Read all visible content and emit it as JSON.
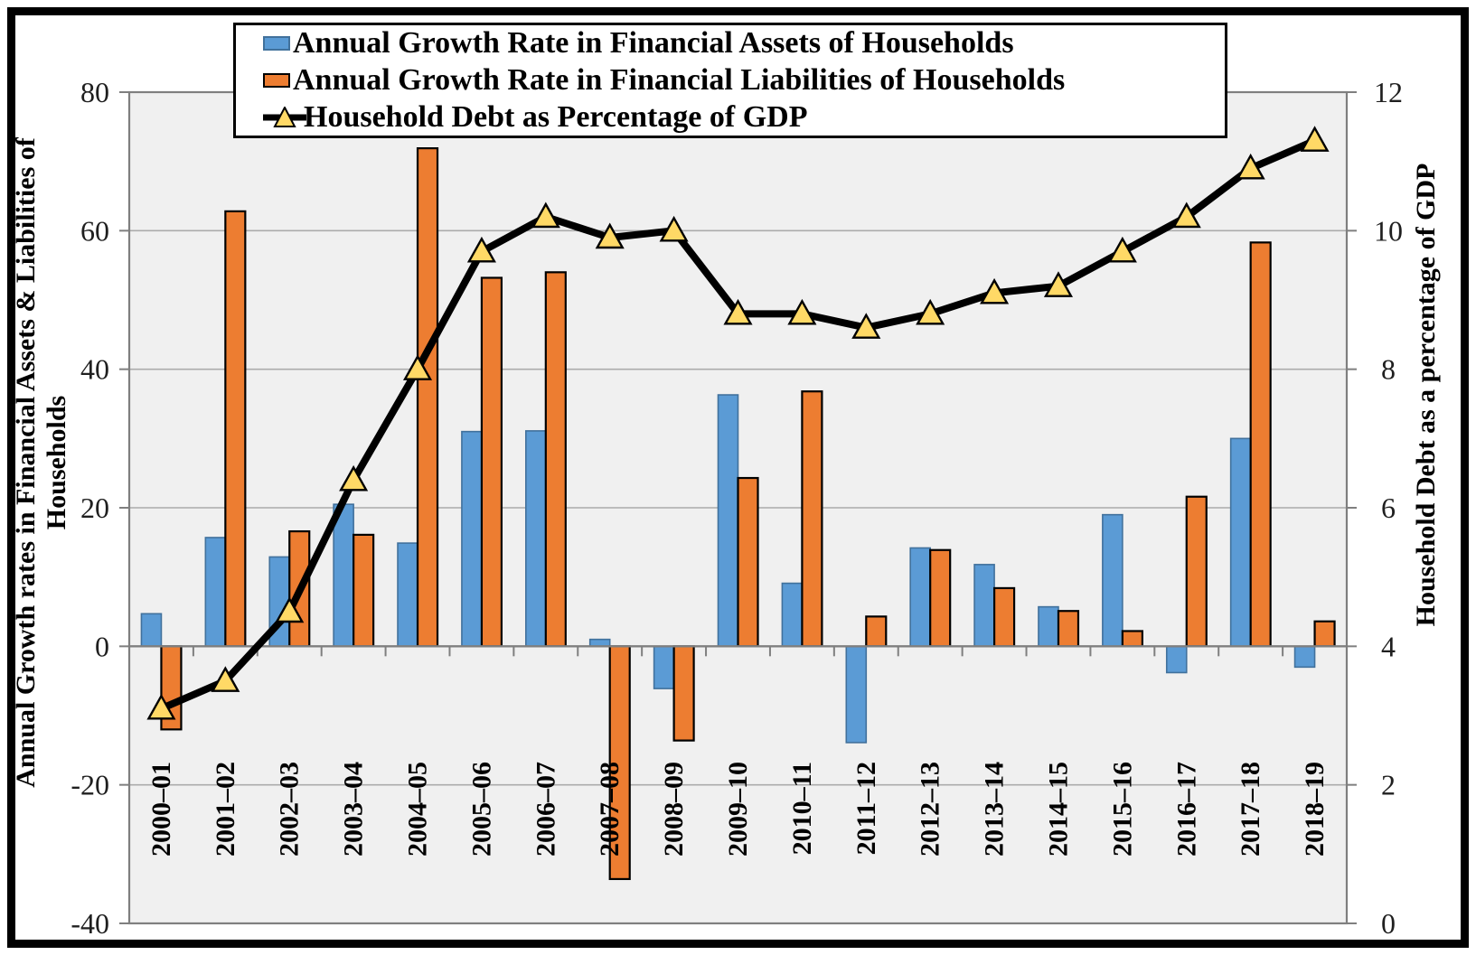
{
  "figure": {
    "background": "#FFFFFF",
    "border_color": "#000000"
  },
  "chart_data": {
    "type": "combo-bar-line",
    "legend_position": "top",
    "grid": true,
    "plot_bg": "#F0F0F0",
    "gridline_color": "#ABABAB",
    "axis_color": "#7F7F7F",
    "tick_label_color": "#1F1F1F",
    "categories": [
      "2000–01",
      "2001–02",
      "2002–03",
      "2003–04",
      "2004–05",
      "2005–06",
      "2006–07",
      "2007–08",
      "2008–09",
      "2009–10",
      "2010–11",
      "2011–12",
      "2012–13",
      "2013–14",
      "2014–15",
      "2015–16",
      "2016–17",
      "2017–18",
      "2018–19"
    ],
    "series": [
      {
        "name": "Annual Growth Rate in Financial Assets of Households",
        "type": "bar",
        "axis": "left",
        "color": "#5B9BD5",
        "border_color": "#41719C",
        "values": [
          4.7,
          15.7,
          12.9,
          20.5,
          14.9,
          31.0,
          31.1,
          1.0,
          -6.1,
          36.3,
          9.1,
          -13.9,
          14.2,
          11.8,
          5.7,
          19.0,
          -3.8,
          30.0,
          -3.0
        ]
      },
      {
        "name": "Annual Growth Rate in Financial Liabilities of Households",
        "type": "bar",
        "axis": "left",
        "color": "#ED7D31",
        "border_color": "#000000",
        "values": [
          -12.0,
          62.8,
          16.6,
          16.1,
          71.9,
          53.2,
          54.0,
          -33.6,
          -13.6,
          24.3,
          36.8,
          4.3,
          13.9,
          8.4,
          5.1,
          2.2,
          21.6,
          58.3,
          3.6
        ]
      },
      {
        "name": "Household Debt as Percentage of GDP",
        "type": "line",
        "axis": "right",
        "color": "#000000",
        "marker": "triangle",
        "marker_fill": "#FFD966",
        "marker_border": "#000000",
        "values": [
          3.1,
          3.5,
          4.5,
          6.4,
          8.0,
          9.7,
          10.2,
          9.9,
          10.0,
          8.8,
          8.8,
          8.6,
          8.8,
          9.1,
          9.2,
          9.7,
          10.2,
          10.9,
          11.3
        ]
      }
    ],
    "left_axis": {
      "title_line1": "Annual Growth rates in Financial Assets & Liabilities of",
      "title_line2": "Households",
      "ticks": [
        80,
        60,
        40,
        20,
        0,
        -20,
        -40
      ],
      "max": 80,
      "min": -40
    },
    "right_axis": {
      "title": "Household Debt as a percentage of GDP",
      "ticks": [
        12,
        10,
        8,
        6,
        4,
        2,
        0
      ],
      "max": 12,
      "min": 0
    }
  }
}
